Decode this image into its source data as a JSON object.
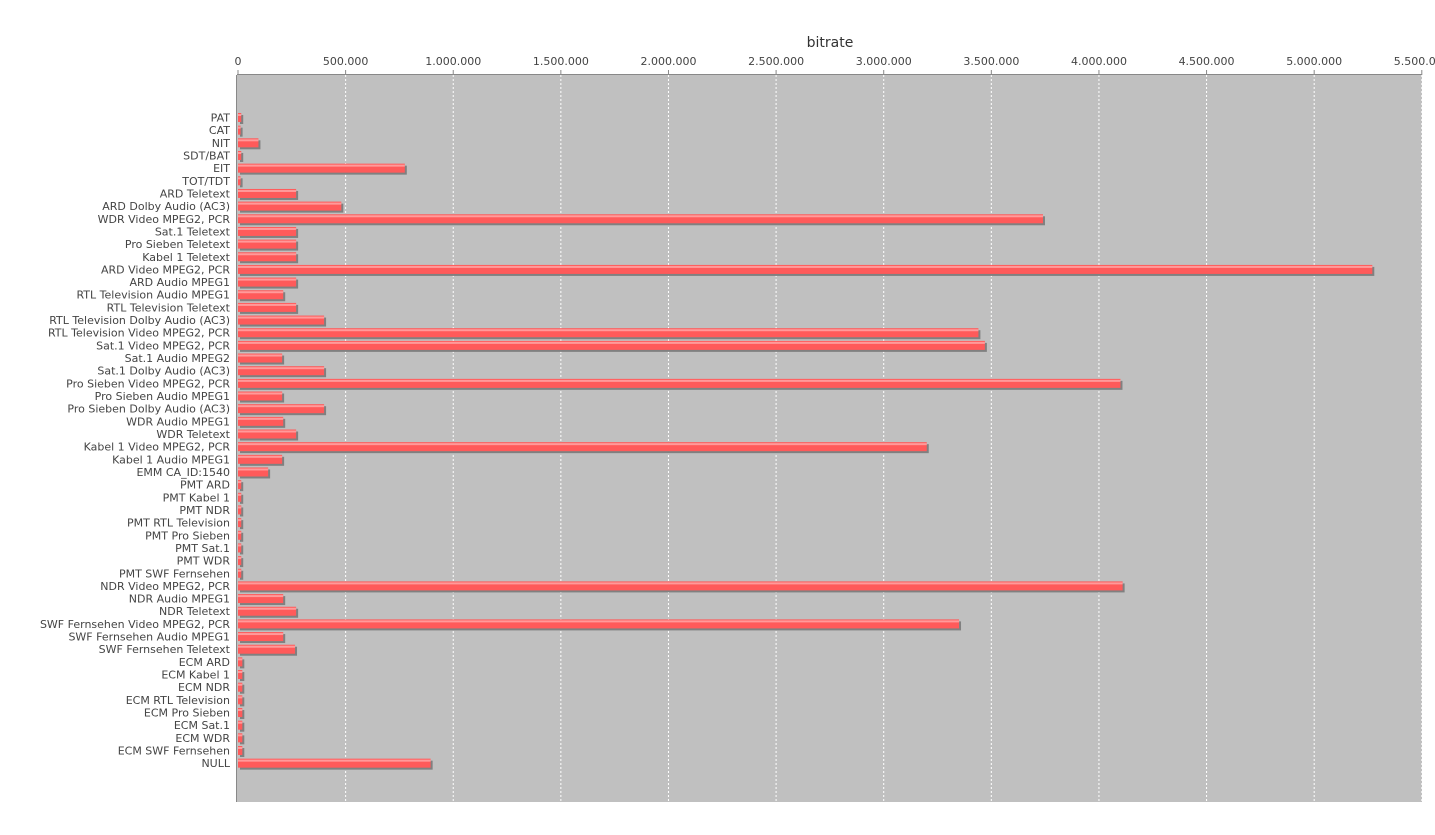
{
  "chart_data": {
    "type": "bar",
    "orientation": "horizontal",
    "title": "bitrate",
    "xlabel": "",
    "ylabel": "",
    "xlim": [
      0,
      5500000
    ],
    "x_ticks": [
      0,
      500000,
      1000000,
      1500000,
      2000000,
      2500000,
      3000000,
      3500000,
      4000000,
      4500000,
      5000000,
      5500000
    ],
    "x_tick_labels": [
      "0",
      "500.000",
      "1.000.000",
      "1.500.000",
      "2.000.000",
      "2.500.000",
      "3.000.000",
      "3.500.000",
      "4.000.000",
      "4.500.000",
      "5.000.000",
      "5.500.000"
    ],
    "grid": true,
    "legend": "none",
    "colors": {
      "bar": "#ff5a5a",
      "bar_highlight": "#ff9a9a",
      "shadow": "#808080",
      "plot_bg": "#c0c0c0",
      "grid": "#ffffff"
    },
    "categories": [
      "PAT",
      "CAT",
      "NIT",
      "SDT/BAT",
      "EIT",
      "TOT/TDT",
      "ARD Teletext",
      "ARD Dolby Audio (AC3)",
      "WDR Video MPEG2, PCR",
      "Sat.1 Teletext",
      "Pro Sieben Teletext",
      "Kabel 1 Teletext",
      "ARD Video MPEG2, PCR",
      "ARD Audio MPEG1",
      "RTL Television Audio MPEG1",
      "RTL Television Teletext",
      "RTL Television Dolby Audio (AC3)",
      "RTL Television Video MPEG2, PCR",
      "Sat.1 Video MPEG2, PCR",
      "Sat.1 Audio MPEG2",
      "Sat.1 Dolby Audio (AC3)",
      "Pro Sieben Video MPEG2, PCR",
      "Pro Sieben Audio MPEG1",
      "Pro Sieben Dolby Audio (AC3)",
      "WDR Audio MPEG1",
      "WDR Teletext",
      "Kabel 1 Video MPEG2, PCR",
      "Kabel 1 Audio MPEG1",
      "EMM CA_ID:1540",
      "PMT ARD",
      "PMT Kabel 1",
      "PMT NDR",
      "PMT RTL Television",
      "PMT Pro Sieben",
      "PMT Sat.1",
      "PMT WDR",
      "PMT SWF Fernsehen",
      "NDR Video MPEG2, PCR",
      "NDR Audio MPEG1",
      "NDR Teletext",
      "SWF Fernsehen Video MPEG2, PCR",
      "SWF Fernsehen Audio MPEG1",
      "SWF Fernsehen Teletext",
      "ECM ARD",
      "ECM Kabel 1",
      "ECM NDR",
      "ECM RTL Television",
      "ECM Pro Sieben",
      "ECM Sat.1",
      "ECM WDR",
      "ECM SWF Fernsehen",
      "NULL"
    ],
    "values": [
      15000,
      12000,
      95000,
      15000,
      775000,
      12000,
      270000,
      480000,
      3740000,
      270000,
      270000,
      270000,
      5270000,
      270000,
      210000,
      270000,
      400000,
      3440000,
      3470000,
      205000,
      400000,
      4100000,
      205000,
      400000,
      210000,
      270000,
      3200000,
      205000,
      140000,
      15000,
      15000,
      15000,
      15000,
      15000,
      15000,
      15000,
      15000,
      4110000,
      210000,
      270000,
      3350000,
      210000,
      265000,
      20000,
      20000,
      20000,
      20000,
      20000,
      20000,
      20000,
      20000,
      895000
    ]
  }
}
